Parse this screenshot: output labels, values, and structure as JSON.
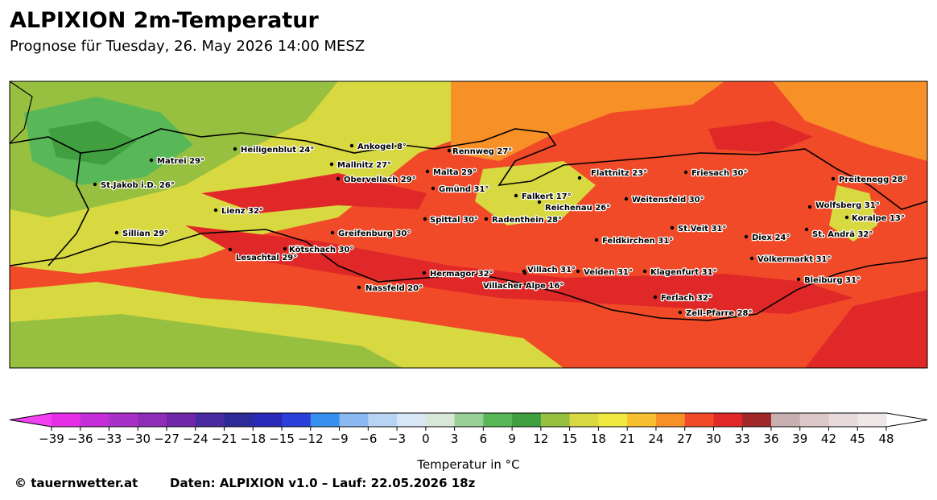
{
  "title": "ALPIXION 2m-Temperatur",
  "subtitle": "Prognose für Tuesday, 26. May 2026 14:00 MESZ",
  "cities": [
    {
      "label": "Matrei 29°"
    },
    {
      "label": "Heiligenblut 24°"
    },
    {
      "label": "Ankogel 8°"
    },
    {
      "label": "Mallnitz 27°"
    },
    {
      "label": "Obervellach 29°"
    },
    {
      "label": "Rennweg 27°"
    },
    {
      "label": "Malta 29°"
    },
    {
      "label": "Gmünd 31°"
    },
    {
      "label": "St.Jakob i.D. 26°"
    },
    {
      "label": "Lienz 32°"
    },
    {
      "label": "Falkert 17°"
    },
    {
      "label": "Reichenau 26°"
    },
    {
      "label": "Flattnitz 23°"
    },
    {
      "label": "Friesach 30°"
    },
    {
      "label": "Weitensfeld 30°"
    },
    {
      "label": "Preitenegg 28°"
    },
    {
      "label": "Wolfsberg 31°"
    },
    {
      "label": "Koralpe 13°"
    },
    {
      "label": "St. Andrä 32°"
    },
    {
      "label": "Spittal 30°"
    },
    {
      "label": "Radenthein 28°"
    },
    {
      "label": "St.Veit 31°"
    },
    {
      "label": "Diex 24°"
    },
    {
      "label": "Feldkirchen 31°"
    },
    {
      "label": "Sillian 29°"
    },
    {
      "label": "Greifenburg 30°"
    },
    {
      "label": "Kötschach 30°"
    },
    {
      "label": "Lesachtal 29°"
    },
    {
      "label": "Völkermarkt 31°"
    },
    {
      "label": "Villach 31°"
    },
    {
      "label": "Velden 31°"
    },
    {
      "label": "Klagenfurt 31°"
    },
    {
      "label": "Hermagor 32°"
    },
    {
      "label": "Villacher Alpe 16°"
    },
    {
      "label": "Bleiburg 31°"
    },
    {
      "label": "Nassfeld 20°"
    },
    {
      "label": "Ferlach 32°"
    },
    {
      "label": "Zell-Pfarre 28°"
    }
  ],
  "colorbar": {
    "label": "Temperatur in °C",
    "under_color": "#f040f0",
    "over_color": "#ffffff",
    "ticks": [
      {
        "value": -39,
        "label": "−39"
      },
      {
        "value": -36,
        "label": "−36"
      },
      {
        "value": -33,
        "label": "−33"
      },
      {
        "value": -30,
        "label": "−30"
      },
      {
        "value": -27,
        "label": "−27"
      },
      {
        "value": -24,
        "label": "−24"
      },
      {
        "value": -21,
        "label": "−21"
      },
      {
        "value": -18,
        "label": "−18"
      },
      {
        "value": -15,
        "label": "−15"
      },
      {
        "value": -12,
        "label": "−12"
      },
      {
        "value": -9,
        "label": "−9"
      },
      {
        "value": -6,
        "label": "−6"
      },
      {
        "value": -3,
        "label": "−3"
      },
      0,
      3,
      6,
      9,
      12,
      15,
      18,
      21,
      24,
      27,
      30,
      33,
      36,
      39,
      42,
      45,
      48
    ],
    "colors": [
      "#e62ee6",
      "#c42ed9",
      "#a830c8",
      "#8e2eb8",
      "#7028a8",
      "#4a2aa0",
      "#2e2a98",
      "#2a2ab8",
      "#2a40d8",
      "#3690f0",
      "#8ab8f0",
      "#b8d4f4",
      "#d8e6f6",
      "#d8e8d8",
      "#98d098",
      "#58b858",
      "#40a040",
      "#98c040",
      "#d8d840",
      "#f0e840",
      "#f8c030",
      "#f89028",
      "#f04a28",
      "#e02828",
      "#a02828",
      "#c8b0b0",
      "#dcc8c8",
      "#e8dada",
      "#f0e8e8"
    ]
  },
  "footer": {
    "copyright": "© tauernwetter.at",
    "source": "Daten: ALPIXION v1.0 – Lauf: 22.05.2026 18z"
  }
}
